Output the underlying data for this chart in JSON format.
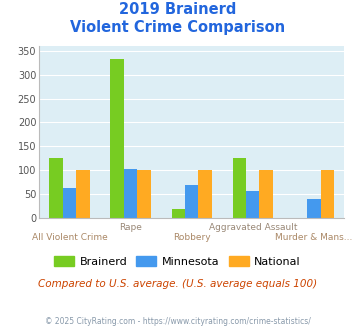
{
  "title_line1": "2019 Brainerd",
  "title_line2": "Violent Crime Comparison",
  "categories": [
    "All Violent Crime",
    "Rape",
    "Robbery",
    "Aggravated Assault",
    "Murder & Mans..."
  ],
  "brainerd": [
    125,
    333,
    18,
    125,
    0
  ],
  "minnesota": [
    63,
    103,
    68,
    56,
    40
  ],
  "national": [
    100,
    100,
    100,
    100,
    100
  ],
  "colors": {
    "brainerd": "#77cc22",
    "minnesota": "#4499ee",
    "national": "#ffaa22"
  },
  "ylim": [
    0,
    360
  ],
  "yticks": [
    0,
    50,
    100,
    150,
    200,
    250,
    300,
    350
  ],
  "title_color": "#2266dd",
  "bg_color": "#ddeef5",
  "caption": "Compared to U.S. average. (U.S. average equals 100)",
  "caption_color": "#cc4400",
  "footer": "© 2025 CityRating.com - https://www.cityrating.com/crime-statistics/",
  "footer_color": "#8899aa",
  "bar_width": 0.22,
  "cat_top": [
    "",
    "Rape",
    "",
    "Aggravated Assault",
    ""
  ],
  "cat_bot": [
    "All Violent Crime",
    "",
    "Robbery",
    "",
    "Murder & Mans..."
  ],
  "cat_top_color": "#998877",
  "cat_bot_color": "#aa8866"
}
